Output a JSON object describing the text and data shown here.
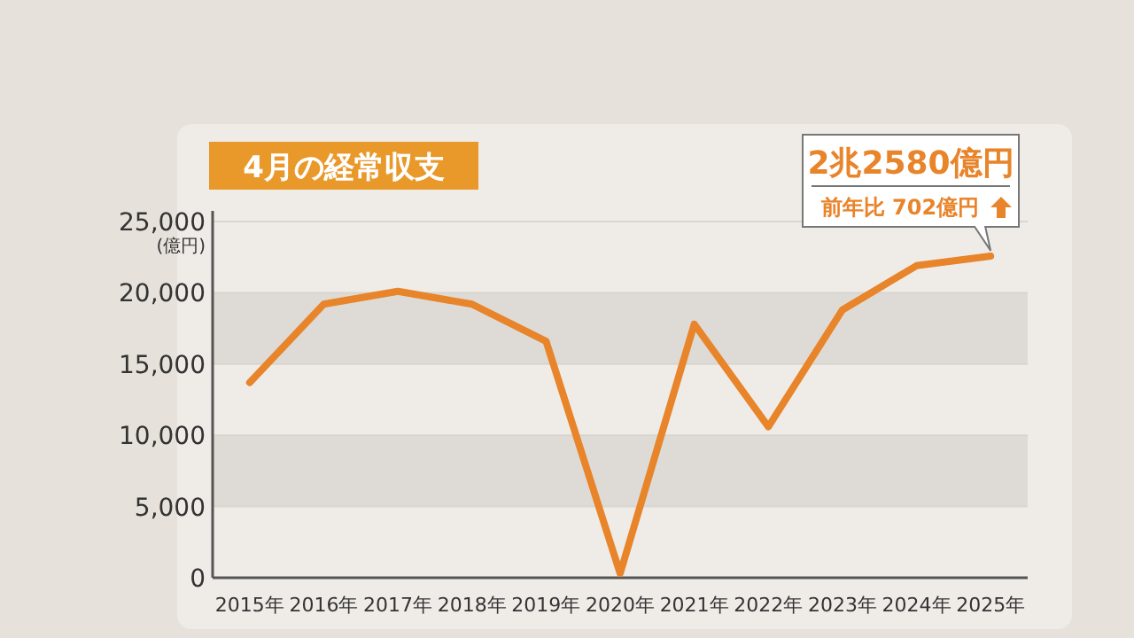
{
  "chart_data": {
    "type": "line",
    "title": "4月の経常収支",
    "ylabel": "(億円)",
    "categories": [
      "2015年",
      "2016年",
      "2017年",
      "2018年",
      "2019年",
      "2020年",
      "2021年",
      "2022年",
      "2023年",
      "2024年",
      "2025年"
    ],
    "series": [
      {
        "color": "#e8842a",
        "values": [
          13700,
          19200,
          20100,
          19200,
          16600,
          300,
          17800,
          10600,
          18800,
          21900,
          22580
        ]
      }
    ],
    "ylim": [
      0,
      25000
    ],
    "yticks": [
      {
        "value": 0,
        "label": "0"
      },
      {
        "value": 5000,
        "label": "5,000"
      },
      {
        "value": 10000,
        "label": "10,000"
      },
      {
        "value": 15000,
        "label": "15,000"
      },
      {
        "value": 20000,
        "label": "20,000"
      },
      {
        "value": 25000,
        "label": "25,000"
      }
    ],
    "grid": "y",
    "annotations": [
      {
        "text": "2兆2580億円",
        "x": "2025年",
        "y": 22580
      },
      "前年比 702億円"
    ]
  }
}
